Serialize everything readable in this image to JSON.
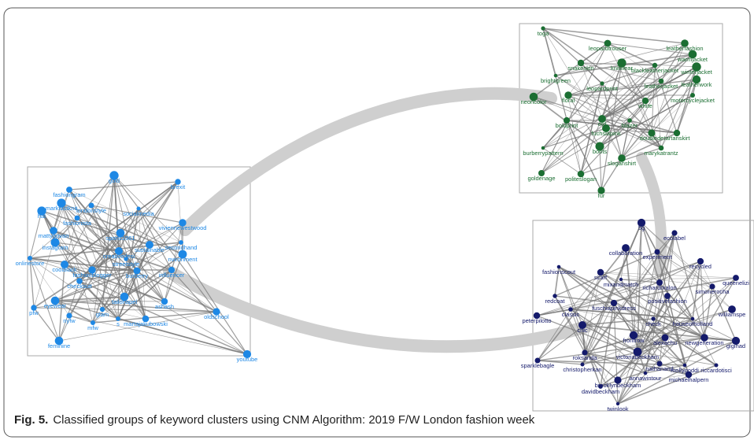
{
  "figure": {
    "clusters": [
      {
        "name": "blue",
        "color": "#1e88e5",
        "label_color": "#1e88e5",
        "nodes": [
          "gold",
          "brexit",
          "fashiongram",
          "markfastknit",
          "hat",
          "londonstyle",
          "socialmedia",
          "fashionista",
          "sports1961",
          "viviennewestwood",
          "mattybovan",
          "instagram",
          "sustainable",
          "secondhand",
          "onlinestore",
          "creativedesi",
          "streetstyle",
          "nvironment",
          "coolblack",
          "burberry",
          "fashionblogger",
          "influencer",
          "checksuit",
          "tailorlapel",
          "ashash",
          "eyewear",
          "glam",
          "oldschool",
          "pfw",
          "nyfw",
          "s",
          "martajakubowski",
          "mfw",
          "feminine",
          "youtube"
        ]
      },
      {
        "name": "green",
        "color": "#1b6e32",
        "label_color": "#1b6e32",
        "nodes": [
          "toga",
          "leopardtrouser",
          "leatherfashion",
          "warmjacket",
          "snakeskin",
          "knitwear",
          "blackleatherjacket",
          "winterjacket",
          "brightgreen",
          "leopardprint",
          "leatherjacket",
          "leatherwork",
          "neoncolor",
          "floral",
          "white",
          "motorcyclejacket",
          "boldprint",
          "otd",
          "blazer",
          "fuchsiapink",
          "doublede",
          "tartanskirt",
          "boots",
          "marykatrantz",
          "burberrypattern",
          "sloganshirt",
          "goldenage",
          "politeslogan",
          "fur"
        ]
      },
      {
        "name": "navy",
        "color": "#141a6b",
        "label_color": "#141a6b",
        "nodes": [
          "5g",
          "ecolabel",
          "collaboration",
          "experiment",
          "recycled",
          "fashionscout",
          "scarf",
          "mixandmatch",
          "richardmalon",
          "queenelizi",
          "simonerocha",
          "redcoat",
          "positivefashion",
          "classic",
          "fuschiapinkdress",
          "check",
          "houseofholland",
          "williamspe",
          "peterpilotto",
          "chic",
          "frontrow",
          "alexachu",
          "newgeneration",
          "gigihad",
          "roksanda",
          "victoriabeckham",
          "sparklebagle",
          "nathanand",
          "mollygoddi",
          "riccardotisci",
          "christopherkan",
          "annawintour",
          "michaelhalpern",
          "brooklynbeckham",
          "davidbeckham",
          "twinlook"
        ]
      }
    ],
    "caption": {
      "label": "Fig. 5.",
      "text": "Classified groups of keyword clusters using CNM Algorithm: 2019 F/W London fashion week"
    }
  }
}
